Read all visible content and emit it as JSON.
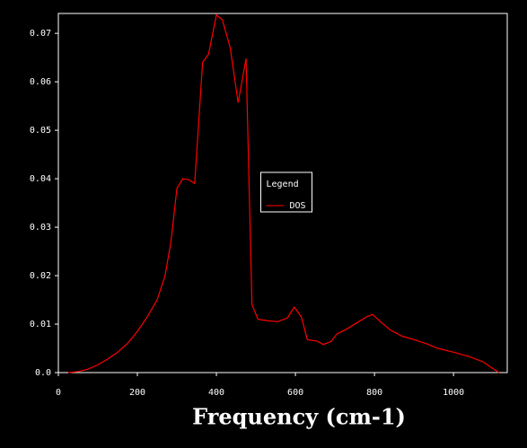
{
  "chart_data": {
    "type": "line",
    "xlabel": "Frequency (cm-1)",
    "x": [
      25,
      50,
      75,
      100,
      125,
      150,
      175,
      200,
      225,
      250,
      270,
      285,
      300,
      315,
      330,
      345,
      365,
      380,
      400,
      415,
      435,
      455,
      475,
      490,
      505,
      530,
      555,
      580,
      597,
      615,
      630,
      655,
      670,
      690,
      705,
      730,
      760,
      780,
      795,
      815,
      840,
      870,
      900,
      930,
      960,
      1000,
      1040,
      1075,
      1100,
      1115
    ],
    "series": [
      {
        "name": "DOS",
        "color": "#ff0000",
        "values": [
          0,
          0.0002,
          0.0007,
          0.0016,
          0.0028,
          0.0042,
          0.006,
          0.0085,
          0.0115,
          0.015,
          0.02,
          0.027,
          0.038,
          0.04,
          0.0398,
          0.039,
          0.064,
          0.0657,
          0.0738,
          0.0728,
          0.067,
          0.0557,
          0.0648,
          0.014,
          0.011,
          0.0107,
          0.0105,
          0.0113,
          0.0135,
          0.0115,
          0.0068,
          0.0065,
          0.0058,
          0.0064,
          0.008,
          0.009,
          0.0105,
          0.0115,
          0.012,
          0.0105,
          0.0088,
          0.0075,
          0.0068,
          0.006,
          0.005,
          0.0042,
          0.0033,
          0.0022,
          0.0008,
          0
        ]
      }
    ],
    "legend_title": "Legend",
    "legend_loc": "center",
    "xlim": [
      0,
      1136
    ],
    "ylim": [
      0,
      0.0741
    ],
    "xticks": [
      0,
      200,
      400,
      600,
      800,
      1000
    ],
    "yticks": [
      {
        "value": 0,
        "label": "0.0"
      },
      0.01,
      0.02,
      0.03,
      0.04,
      0.05,
      0.06,
      0.07
    ],
    "background": "#000000",
    "axis_color": "#ffffff"
  }
}
